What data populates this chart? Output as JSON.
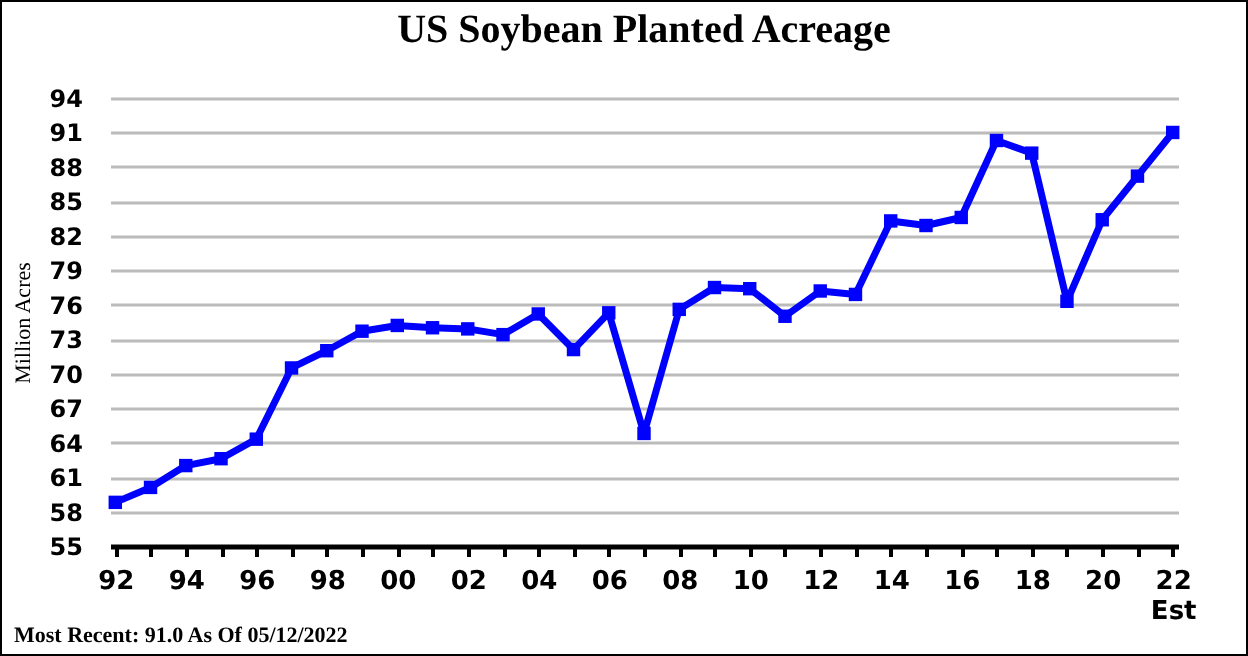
{
  "chart_data": {
    "type": "line",
    "title": "US Soybean Planted Acreage",
    "ylabel": "Million Acres",
    "categories": [
      "92",
      null,
      "94",
      null,
      "96",
      null,
      "98",
      null,
      "00",
      null,
      "02",
      null,
      "04",
      null,
      "06",
      null,
      "08",
      null,
      "10",
      null,
      "12",
      null,
      "14",
      null,
      "16",
      null,
      "18",
      null,
      "20",
      null,
      "22\nEst"
    ],
    "series": [
      {
        "color": "#0000ff",
        "values": [
          58.8,
          60.1,
          62.0,
          62.6,
          64.3,
          70.5,
          72.0,
          73.7,
          74.2,
          74.0,
          73.9,
          73.4,
          75.2,
          72.1,
          75.3,
          64.8,
          75.6,
          77.5,
          77.4,
          75.0,
          77.2,
          76.9,
          83.3,
          82.9,
          83.6,
          90.3,
          89.2,
          76.3,
          83.4,
          87.2,
          91.0
        ]
      }
    ],
    "ylim": [
      55,
      94
    ],
    "yticks": [
      55,
      58,
      61,
      64,
      67,
      70,
      73,
      76,
      79,
      82,
      85,
      88,
      91,
      94
    ],
    "grid": "y",
    "marker": "square",
    "line_style": "solid",
    "legend": false,
    "annotations": [
      "Most Recent: 91.0 As Of 05/12/2022"
    ]
  }
}
